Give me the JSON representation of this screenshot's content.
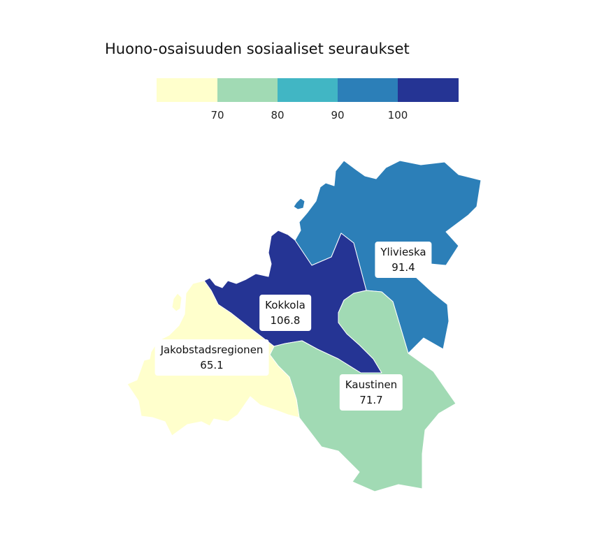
{
  "map": {
    "title": "Huono-osaisuuden sosiaaliset seuraukset",
    "legend": {
      "classes": [
        {
          "color": "#ffffcc",
          "label": ""
        },
        {
          "color": "#a1dab4",
          "label": "70"
        },
        {
          "color": "#41b6c4",
          "label": "80"
        },
        {
          "color": "#2c7fb8",
          "label": "90"
        },
        {
          "color": "#253494",
          "label": "100"
        }
      ]
    },
    "regions": [
      {
        "name": "Ylivieska",
        "value": "91.4",
        "color": "#2c7fb8"
      },
      {
        "name": "Kokkola",
        "value": "106.8",
        "color": "#253494"
      },
      {
        "name": "Jakobstadsregionen",
        "value": "65.1",
        "color": "#ffffcc"
      },
      {
        "name": "Kaustinen",
        "value": "71.7",
        "color": "#a1dab4"
      }
    ]
  }
}
